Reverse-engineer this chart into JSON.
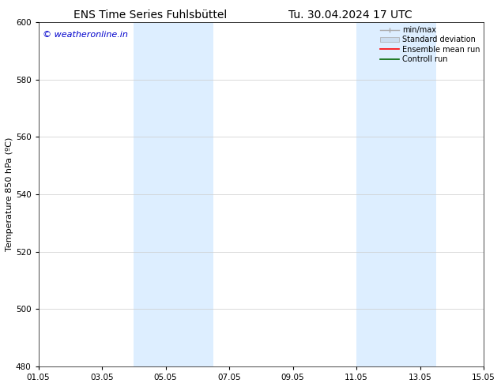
{
  "title_left": "ENS Time Series Fuhlsbüttel",
  "title_right": "Tu. 30.04.2024 17 UTC",
  "ylabel": "Temperature 850 hPa (ºC)",
  "ylim": [
    480,
    600
  ],
  "yticks": [
    480,
    500,
    520,
    540,
    560,
    580,
    600
  ],
  "xlim": [
    0,
    14
  ],
  "xtick_labels": [
    "01.05",
    "03.05",
    "05.05",
    "07.05",
    "09.05",
    "11.05",
    "13.05",
    "15.05"
  ],
  "xtick_positions": [
    0,
    2,
    4,
    6,
    8,
    10,
    12,
    14
  ],
  "shaded_bands": [
    {
      "xstart": 3.0,
      "xend": 5.5,
      "color": "#ddeeff"
    },
    {
      "xstart": 10.0,
      "xend": 12.5,
      "color": "#ddeeff"
    }
  ],
  "background_color": "#ffffff",
  "plot_bg_color": "#ffffff",
  "grid_color": "#cccccc",
  "watermark_text": "© weatheronline.in",
  "watermark_color": "#0000cc",
  "legend_items": [
    {
      "label": "min/max",
      "color": "#aaaaaa",
      "style": "errorbar"
    },
    {
      "label": "Standard deviation",
      "color": "#ccddef",
      "style": "fill"
    },
    {
      "label": "Ensemble mean run",
      "color": "#ff0000",
      "style": "line"
    },
    {
      "label": "Controll run",
      "color": "#006600",
      "style": "line"
    }
  ],
  "title_fontsize": 10,
  "axis_label_fontsize": 8,
  "tick_fontsize": 7.5,
  "watermark_fontsize": 8,
  "legend_fontsize": 7
}
